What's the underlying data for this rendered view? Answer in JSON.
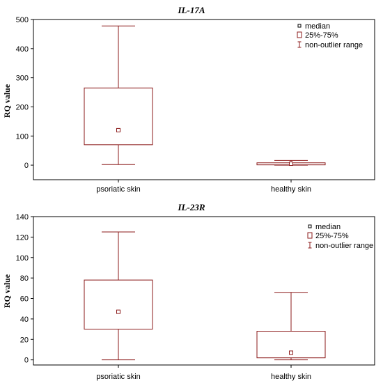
{
  "chart_data": [
    {
      "type": "box",
      "title": "IL-17A",
      "ylabel": "RQ value",
      "ylim": [
        -50,
        500
      ],
      "yticks": [
        0,
        100,
        200,
        300,
        400,
        500
      ],
      "categories": [
        "psoriatic skin",
        "healthy skin"
      ],
      "boxes": [
        {
          "category": "psoriatic skin",
          "min": 2,
          "q1": 70,
          "median": 120,
          "q3": 265,
          "max": 478
        },
        {
          "category": "healthy skin",
          "min": 0,
          "q1": 1,
          "median": 5,
          "q3": 8,
          "max": 16
        }
      ],
      "legend": [
        "median",
        "25%-75%",
        "non-outlier range"
      ],
      "legend_position": "top-right",
      "color": "#8b1a1a"
    },
    {
      "type": "box",
      "title": "IL-23R",
      "ylabel": "RQ value",
      "ylim": [
        -5,
        140
      ],
      "yticks": [
        0,
        20,
        40,
        60,
        80,
        100,
        120,
        140
      ],
      "categories": [
        "psoriatic skin",
        "healthy skin"
      ],
      "boxes": [
        {
          "category": "psoriatic skin",
          "min": 0,
          "q1": 30,
          "median": 47,
          "q3": 78,
          "max": 125
        },
        {
          "category": "healthy skin",
          "min": 0,
          "q1": 2,
          "median": 7,
          "q3": 28,
          "max": 66
        }
      ],
      "legend": [
        "median",
        "25%-75%",
        "non-outlier range"
      ],
      "legend_position": "top-right",
      "color": "#8b1a1a"
    }
  ]
}
